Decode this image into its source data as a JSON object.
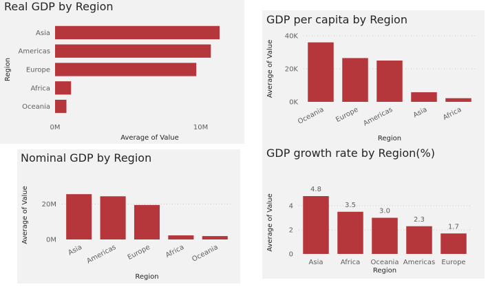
{
  "colors": {
    "bar": "#b5363b",
    "text": "#605e5c",
    "title": "#252423",
    "grid": "#c8c6c4"
  },
  "chart_data": [
    {
      "id": "real-gdp",
      "type": "bar",
      "orientation": "horizontal",
      "title": "Real GDP by Region",
      "xlabel": "Average of Value",
      "ylabel": "Region",
      "categories": [
        "Asia",
        "Americas",
        "Europe",
        "Africa",
        "Oceania"
      ],
      "values": [
        11300000,
        10700000,
        9700000,
        1100000,
        780000
      ],
      "ticks": [
        {
          "value": 0,
          "label": "0M"
        },
        {
          "value": 10000000,
          "label": "10M"
        }
      ],
      "xlim": [
        0,
        13000000
      ],
      "grid": false
    },
    {
      "id": "gdp-per-capita",
      "type": "bar",
      "orientation": "vertical",
      "title": "GDP per capita by Region",
      "xlabel": "Region",
      "ylabel": "Average of Value",
      "categories": [
        "Oceania",
        "Europe",
        "Americas",
        "Asia",
        "Africa"
      ],
      "values": [
        36000,
        26500,
        25000,
        5800,
        2200
      ],
      "ticks": [
        {
          "value": 0,
          "label": "0K"
        },
        {
          "value": 20000,
          "label": "20K"
        },
        {
          "value": 40000,
          "label": "40K"
        }
      ],
      "ylim": [
        0,
        40000
      ],
      "grid": true
    },
    {
      "id": "nominal-gdp",
      "type": "bar",
      "orientation": "vertical",
      "title": "Nominal GDP by Region",
      "xlabel": "Region",
      "ylabel": "Average of Value",
      "categories": [
        "Asia",
        "Americas",
        "Europe",
        "Africa",
        "Oceania"
      ],
      "values": [
        25500000,
        24300000,
        19400000,
        2300000,
        1900000
      ],
      "ticks": [
        {
          "value": 0,
          "label": "0M"
        },
        {
          "value": 20000000,
          "label": "20M"
        }
      ],
      "ylim": [
        0,
        27500000
      ],
      "grid": true
    },
    {
      "id": "gdp-growth",
      "type": "bar",
      "orientation": "vertical",
      "title": "GDP growth rate by Region(%)",
      "xlabel": "Region",
      "ylabel": "Average of Value",
      "categories": [
        "Asia",
        "Africa",
        "Oceania",
        "Americas",
        "Europe"
      ],
      "values": [
        4.8,
        3.5,
        3.0,
        2.3,
        1.7
      ],
      "data_labels": [
        "4.8",
        "3.5",
        "3.0",
        "2.3",
        "1.7"
      ],
      "ticks": [
        {
          "value": 0,
          "label": "0"
        },
        {
          "value": 2,
          "label": "2"
        },
        {
          "value": 4,
          "label": "4"
        }
      ],
      "ylim": [
        0,
        5.2
      ],
      "grid": true
    }
  ]
}
